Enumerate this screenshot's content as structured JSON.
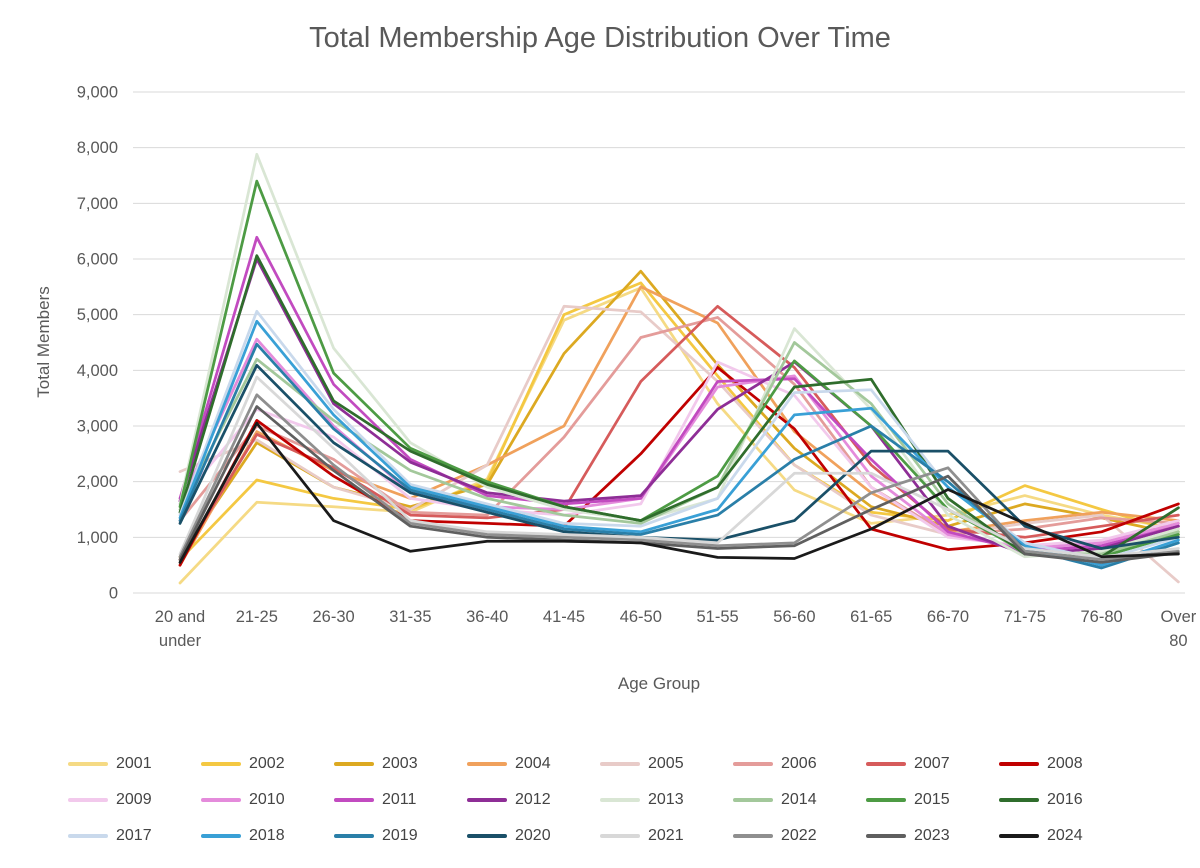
{
  "chart": {
    "title": "Total Membership Age Distribution Over Time",
    "ylabel": "Total Members",
    "xlabel": "Age Group"
  },
  "axis": {
    "ytick_labels": [
      "0",
      "1,000",
      "2,000",
      "3,000",
      "4,000",
      "5,000",
      "6,000",
      "7,000",
      "8,000",
      "9,000"
    ]
  },
  "chart_data": {
    "type": "line",
    "title": "Total Membership Age Distribution Over Time",
    "xlabel": "Age Group",
    "ylabel": "Total Members",
    "ylim": [
      0,
      9000
    ],
    "ytick_step": 1000,
    "grid": true,
    "legend_position": "bottom",
    "legend_rows": 3,
    "gridline_color": "#D9D9D9",
    "text_color": "#595959",
    "categories": [
      "20 and under",
      "21-25",
      "26-30",
      "31-35",
      "36-40",
      "41-45",
      "46-50",
      "51-55",
      "56-60",
      "61-65",
      "66-70",
      "71-75",
      "76-80",
      "Over 80"
    ],
    "series": [
      {
        "name": "2001",
        "color": "#F5DA84",
        "values": [
          180,
          1630,
          1550,
          1450,
          2050,
          4900,
          5480,
          3400,
          1850,
          1250,
          1400,
          1750,
          1400,
          1150
        ]
      },
      {
        "name": "2002",
        "color": "#F4C842",
        "values": [
          600,
          2030,
          1700,
          1500,
          2000,
          5000,
          5570,
          3900,
          2300,
          1450,
          1300,
          1930,
          1500,
          1100
        ]
      },
      {
        "name": "2003",
        "color": "#DCA921",
        "values": [
          650,
          2700,
          1900,
          1550,
          1950,
          4300,
          5780,
          4100,
          2600,
          1550,
          1200,
          1600,
          1350,
          1050
        ]
      },
      {
        "name": "2004",
        "color": "#F0A15C",
        "values": [
          500,
          2900,
          2200,
          1700,
          2300,
          3000,
          5500,
          4850,
          2900,
          1800,
          1100,
          1300,
          1450,
          1300
        ]
      },
      {
        "name": "2005",
        "color": "#E8CBC8",
        "values": [
          2180,
          2750,
          1900,
          1500,
          2300,
          5150,
          5050,
          3800,
          2300,
          1400,
          1050,
          1250,
          1400,
          200
        ]
      },
      {
        "name": "2006",
        "color": "#E49C9A",
        "values": [
          1300,
          3000,
          2400,
          1450,
          1400,
          2800,
          4590,
          4950,
          3750,
          1900,
          1050,
          1150,
          1350,
          1250
        ]
      },
      {
        "name": "2007",
        "color": "#D65B5B",
        "values": [
          600,
          2850,
          2250,
          1400,
          1350,
          1500,
          3800,
          5150,
          4050,
          2300,
          1150,
          1000,
          1200,
          1400
        ]
      },
      {
        "name": "2008",
        "color": "#C00000",
        "values": [
          500,
          3100,
          2100,
          1300,
          1250,
          1200,
          2500,
          4050,
          2950,
          1150,
          780,
          900,
          1100,
          1600
        ]
      },
      {
        "name": "2009",
        "color": "#F2C9EC",
        "values": [
          1650,
          3300,
          2800,
          1700,
          1500,
          1400,
          1600,
          4150,
          3550,
          1900,
          1000,
          850,
          950,
          1300
        ]
      },
      {
        "name": "2010",
        "color": "#E48BDB",
        "values": [
          1600,
          4560,
          3000,
          1800,
          1550,
          1500,
          1700,
          3700,
          3900,
          2100,
          1050,
          800,
          900,
          1250
        ]
      },
      {
        "name": "2011",
        "color": "#C24BC0",
        "values": [
          1700,
          6390,
          3750,
          2400,
          1750,
          1600,
          1700,
          3800,
          3850,
          2400,
          1100,
          750,
          850,
          1200
        ]
      },
      {
        "name": "2012",
        "color": "#8E2E96",
        "values": [
          1650,
          6000,
          3400,
          2350,
          1800,
          1650,
          1750,
          3300,
          4150,
          3000,
          1200,
          700,
          800,
          1200
        ]
      },
      {
        "name": "2013",
        "color": "#D9E6D4",
        "values": [
          1600,
          7880,
          4400,
          2700,
          1900,
          1500,
          1300,
          1700,
          4750,
          3300,
          1400,
          650,
          750,
          1150
        ]
      },
      {
        "name": "2014",
        "color": "#A3C89B",
        "values": [
          1500,
          4200,
          3100,
          2200,
          1700,
          1400,
          1250,
          1900,
          4500,
          3400,
          1600,
          700,
          700,
          1100
        ]
      },
      {
        "name": "2015",
        "color": "#4D9B44",
        "values": [
          1550,
          7400,
          3950,
          2600,
          2000,
          1550,
          1300,
          2100,
          4170,
          3000,
          1500,
          750,
          650,
          1050
        ]
      },
      {
        "name": "2016",
        "color": "#2F6D2C",
        "values": [
          1450,
          6060,
          3450,
          2550,
          1950,
          1550,
          1300,
          1900,
          3700,
          3840,
          1700,
          700,
          650,
          1530
        ]
      },
      {
        "name": "2017",
        "color": "#C9D9EC",
        "values": [
          1400,
          5060,
          3300,
          1950,
          1600,
          1250,
          1200,
          1700,
          3600,
          3650,
          1900,
          900,
          600,
          1000
        ]
      },
      {
        "name": "2018",
        "color": "#39A0D6",
        "values": [
          1350,
          4880,
          3200,
          1900,
          1550,
          1200,
          1100,
          1500,
          3200,
          3320,
          1900,
          850,
          500,
          950
        ]
      },
      {
        "name": "2019",
        "color": "#2A7FA8",
        "values": [
          1300,
          4470,
          2950,
          1850,
          1500,
          1150,
          1050,
          1400,
          2400,
          3000,
          2000,
          800,
          450,
          900
        ]
      },
      {
        "name": "2020",
        "color": "#1A5068",
        "values": [
          1250,
          4090,
          2700,
          1800,
          1450,
          1100,
          1000,
          950,
          1300,
          2550,
          2550,
          1200,
          800,
          1000
        ]
      },
      {
        "name": "2021",
        "color": "#D8D8D8",
        "values": [
          700,
          3880,
          2600,
          1300,
          1100,
          1050,
          1000,
          900,
          2150,
          2150,
          1500,
          800,
          650,
          800
        ]
      },
      {
        "name": "2022",
        "color": "#8F8F8F",
        "values": [
          650,
          3560,
          2300,
          1250,
          1050,
          1000,
          950,
          850,
          900,
          1800,
          2250,
          750,
          600,
          750
        ]
      },
      {
        "name": "2023",
        "color": "#5F5F5F",
        "values": [
          600,
          3350,
          2200,
          1200,
          1000,
          950,
          900,
          800,
          850,
          1500,
          2100,
          700,
          550,
          720
        ]
      },
      {
        "name": "2024",
        "color": "#1A1A1A",
        "values": [
          550,
          3050,
          1300,
          750,
          930,
          930,
          900,
          640,
          620,
          1150,
          1860,
          1250,
          650,
          700
        ]
      }
    ]
  }
}
